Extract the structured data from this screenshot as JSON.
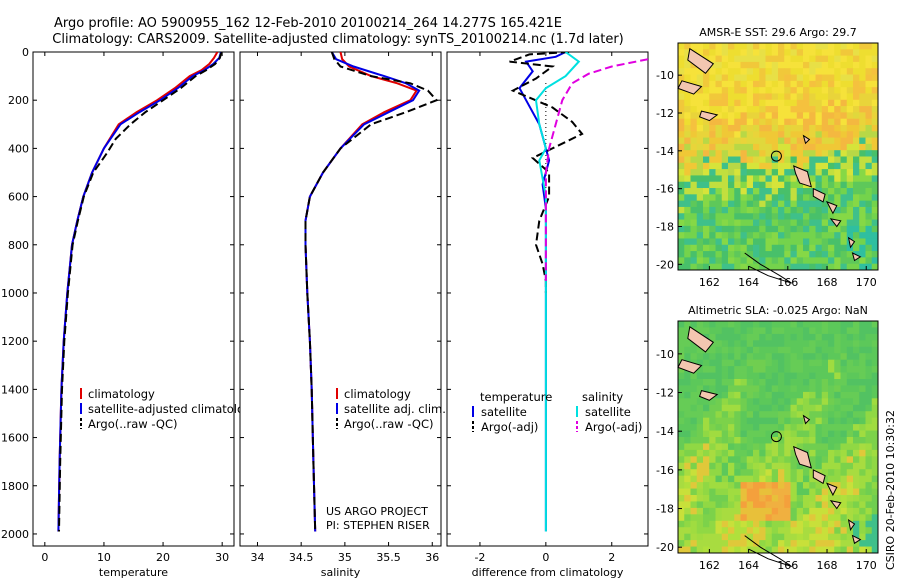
{
  "header": {
    "title_line1": "Argo profile: AO 5900955_162 12-Feb-2010 20100214_264 14.277S 165.421E",
    "title_line2": "Climatology: CARS2009. Satellite-adjusted climatology: synTS_20100214.nc (1.7d later)"
  },
  "colors": {
    "climatology": "#e00000",
    "satellite": "#0000e6",
    "argo": "#000000",
    "sal_satellite": "#00e0e0",
    "sal_argo": "#e000e0"
  },
  "chart_data": [
    {
      "type": "line",
      "xlabel": "temperature",
      "ylabel": "",
      "xlim": [
        -2,
        32
      ],
      "ylim": [
        2050,
        0
      ],
      "xticks": [
        "0",
        "10",
        "20",
        "30"
      ],
      "xtick_values": [
        0,
        10,
        20,
        30
      ],
      "yticks": [
        "0",
        "200",
        "400",
        "600",
        "800",
        "1000",
        "1200",
        "1400",
        "1600",
        "1800",
        "2000"
      ],
      "ytick_values": [
        0,
        200,
        400,
        600,
        800,
        1000,
        1200,
        1400,
        1600,
        1800,
        2000
      ],
      "legend_placement": "lower-right",
      "series": [
        {
          "name": "climatology",
          "color_key": "climatology",
          "dash": false,
          "x": [
            29.2,
            28.6,
            27.8,
            26.5,
            24.5,
            22.0,
            19.0,
            15.5,
            12.5,
            10.0,
            8.0,
            6.5,
            5.5,
            4.6,
            3.8,
            3.2,
            2.8,
            2.5,
            2.3
          ],
          "y": [
            0,
            25,
            50,
            75,
            100,
            150,
            200,
            250,
            300,
            400,
            500,
            600,
            700,
            800,
            1000,
            1200,
            1400,
            1700,
            1990
          ]
        },
        {
          "name": "satellite-adjusted climatology",
          "color_key": "satellite",
          "dash": false,
          "x": [
            29.8,
            29.5,
            28.5,
            27.0,
            25.0,
            22.5,
            19.5,
            16.0,
            12.8,
            10.0,
            8.0,
            6.5,
            5.5,
            4.6,
            3.8,
            3.2,
            2.8,
            2.5,
            2.3
          ],
          "y": [
            0,
            25,
            50,
            75,
            100,
            150,
            200,
            250,
            300,
            400,
            500,
            600,
            700,
            800,
            1000,
            1200,
            1400,
            1700,
            1990
          ]
        },
        {
          "name": "Argo(..raw -QC)",
          "color_key": "argo",
          "dash": true,
          "x": [
            29.9,
            29.6,
            28.8,
            27.3,
            25.5,
            23.0,
            20.0,
            17.0,
            14.5,
            12.0,
            10.5,
            8.2,
            6.6,
            5.6,
            4.7,
            3.9,
            3.3,
            2.9,
            2.6,
            2.4
          ],
          "y": [
            0,
            25,
            50,
            75,
            100,
            150,
            200,
            250,
            300,
            360,
            420,
            500,
            600,
            700,
            800,
            1000,
            1200,
            1400,
            1700,
            1990
          ]
        }
      ]
    },
    {
      "type": "line",
      "xlabel": "salinity",
      "ylabel": "",
      "xlim": [
        33.8,
        36.1
      ],
      "ylim": [
        2050,
        0
      ],
      "xticks": [
        "34",
        "34.5",
        "35",
        "35.5",
        "36"
      ],
      "xtick_values": [
        34,
        34.5,
        35,
        35.5,
        36
      ],
      "legend_placement": "lower-right",
      "annotations": [
        "US ARGO PROJECT",
        "PI: STEPHEN RISER"
      ],
      "series": [
        {
          "name": "climatology",
          "color_key": "climatology",
          "dash": false,
          "x": [
            34.95,
            34.97,
            35.05,
            35.3,
            35.6,
            35.82,
            35.75,
            35.45,
            35.2,
            34.95,
            34.75,
            34.6,
            34.55,
            34.55,
            34.57,
            34.6,
            34.62,
            34.64,
            34.66
          ],
          "y": [
            0,
            30,
            60,
            100,
            130,
            160,
            200,
            250,
            300,
            400,
            500,
            600,
            700,
            800,
            1000,
            1200,
            1400,
            1700,
            1990
          ]
        },
        {
          "name": "satellite adj. clim.",
          "color_key": "satellite",
          "dash": false,
          "x": [
            34.85,
            34.9,
            35.1,
            35.45,
            35.7,
            35.85,
            35.78,
            35.5,
            35.22,
            34.95,
            34.75,
            34.6,
            34.55,
            34.55,
            34.57,
            34.6,
            34.62,
            34.64,
            34.66
          ],
          "y": [
            0,
            30,
            60,
            100,
            130,
            160,
            200,
            250,
            300,
            400,
            500,
            600,
            700,
            800,
            1000,
            1200,
            1400,
            1700,
            1990
          ]
        },
        {
          "name": "Argo(..raw -QC)",
          "color_key": "argo",
          "dash": true,
          "x": [
            34.85,
            34.88,
            34.95,
            35.3,
            35.75,
            35.95,
            36.05,
            35.7,
            35.3,
            34.95,
            34.75,
            34.6,
            34.55,
            34.55,
            34.57,
            34.6,
            34.62,
            34.64,
            34.66
          ],
          "y": [
            0,
            30,
            60,
            100,
            130,
            160,
            200,
            250,
            300,
            400,
            500,
            600,
            700,
            800,
            1000,
            1200,
            1400,
            1700,
            1990
          ]
        }
      ]
    },
    {
      "type": "line",
      "xlabel": "difference from climatology",
      "ylabel": "",
      "xlim": [
        -3,
        3.1
      ],
      "ylim": [
        2050,
        0
      ],
      "xticks": [
        "-2",
        "0",
        "2"
      ],
      "xtick_values": [
        -2,
        0,
        2
      ],
      "legend_placement": "lower-center",
      "legend_headers": [
        "temperature",
        "salinity"
      ],
      "series": [
        {
          "name": "satellite",
          "group": "temperature",
          "color_key": "satellite",
          "dash": false,
          "x": [
            0.6,
            0.3,
            -0.6,
            -0.4,
            -0.8,
            -0.6,
            -0.2,
            -0.1,
            0.1,
            0.0,
            -0.1,
            0.0,
            0.0,
            0.0,
            0.0,
            0.0,
            0.0
          ],
          "y": [
            0,
            20,
            40,
            80,
            150,
            200,
            300,
            350,
            450,
            500,
            550,
            650,
            800,
            1000,
            1400,
            1800,
            1990
          ]
        },
        {
          "name": "Argo(-adj)",
          "group": "temperature",
          "color_key": "argo",
          "dash": true,
          "x": [
            0.7,
            -0.5,
            -1.1,
            0.2,
            -0.3,
            -1.0,
            0.2,
            0.8,
            1.1,
            0.2,
            -0.4,
            0.1,
            0.1,
            -0.2,
            -0.3,
            -0.1,
            0.0,
            0.0
          ],
          "y": [
            0,
            10,
            40,
            60,
            110,
            160,
            230,
            290,
            340,
            400,
            440,
            500,
            600,
            700,
            800,
            880,
            950,
            1000
          ]
        },
        {
          "name": "satellite",
          "group": "salinity",
          "color_key": "sal_satellite",
          "dash": false,
          "x": [
            0.6,
            1.0,
            0.6,
            0.0,
            -0.3,
            -0.2,
            0.0,
            -0.2,
            0.0,
            0.0,
            0.0,
            0.0
          ],
          "y": [
            0,
            40,
            100,
            150,
            200,
            300,
            400,
            450,
            600,
            1000,
            1500,
            1990
          ]
        },
        {
          "name": "Argo(-adj)",
          "group": "salinity",
          "color_key": "sal_argo",
          "dash": true,
          "x": [
            3.1,
            2.0,
            1.3,
            0.8,
            0.5,
            0.3,
            0.1,
            0.0,
            0.0,
            0.0
          ],
          "y": [
            30,
            60,
            90,
            130,
            200,
            300,
            400,
            500,
            700,
            950
          ]
        }
      ]
    },
    {
      "type": "heatmap",
      "title": "AMSR-E SST: 29.6 Argo: 29.7",
      "xticks": [
        "162",
        "164",
        "166",
        "168",
        "170"
      ],
      "xtick_values": [
        162,
        164,
        166,
        168,
        170
      ],
      "yticks": [
        "-10",
        "-12",
        "-14",
        "-16",
        "-18",
        "-20"
      ],
      "ytick_values": [
        -10,
        -12,
        -14,
        -16,
        -18,
        -20
      ],
      "xlim": [
        160.4,
        170.6
      ],
      "ylim": [
        -20.3,
        -8.3
      ],
      "marker": [
        165.42,
        -14.28
      ],
      "palette": "sst",
      "seed": 7
    },
    {
      "type": "heatmap",
      "title": "Altimetric SLA: -0.025 Argo: NaN",
      "xticks": [
        "162",
        "164",
        "166",
        "168",
        "170"
      ],
      "xtick_values": [
        162,
        164,
        166,
        168,
        170
      ],
      "yticks": [
        "-10",
        "-12",
        "-14",
        "-16",
        "-18",
        "-20"
      ],
      "ytick_values": [
        -10,
        -12,
        -14,
        -16,
        -18,
        -20
      ],
      "xlim": [
        160.4,
        170.6
      ],
      "ylim": [
        -20.3,
        -8.3
      ],
      "marker": [
        165.42,
        -14.28
      ],
      "palette": "sla",
      "seed": 13
    }
  ],
  "stamp": "CSIRO 20-Feb-2010 10:30:32"
}
